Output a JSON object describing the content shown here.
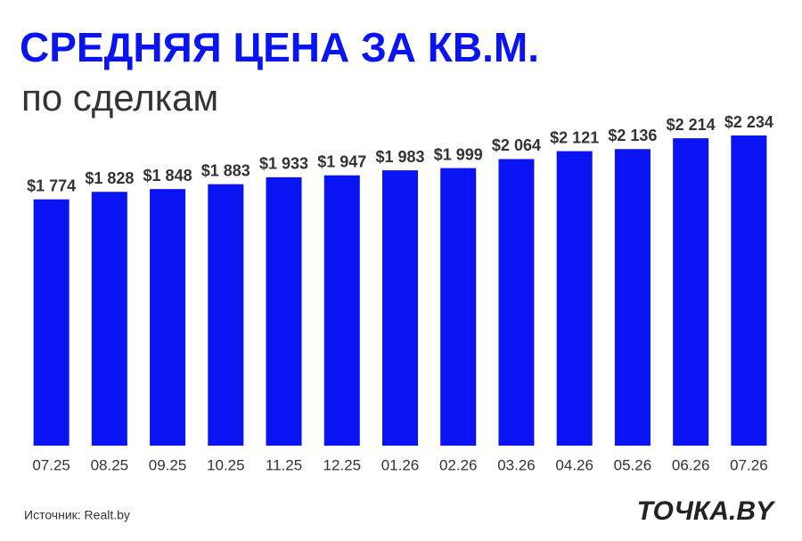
{
  "chart_data": {
    "type": "bar",
    "title": "СРЕДНЯЯ ЦЕНА ЗА КВ.М.",
    "subtitle": "по сделкам",
    "source": "Источник: Realt.by",
    "logo": "ТОЧКА.BY",
    "categories": [
      "07.25",
      "08.25",
      "09.25",
      "10.25",
      "11.25",
      "12.25",
      "01.26",
      "02.26",
      "03.26",
      "04.26",
      "05.26",
      "06.26",
      "07.26"
    ],
    "values": [
      1774,
      1828,
      1848,
      1883,
      1933,
      1947,
      1983,
      1999,
      2064,
      2121,
      2136,
      2214,
      2234
    ],
    "value_labels": [
      "$1 774",
      "$1 828",
      "$1 848",
      "$1 883",
      "$1 933",
      "$1 947",
      "$1 983",
      "$1 999",
      "$2 064",
      "$2 121",
      "$2 136",
      "$2 214",
      "$2 234"
    ],
    "color": "#0a14f2"
  }
}
